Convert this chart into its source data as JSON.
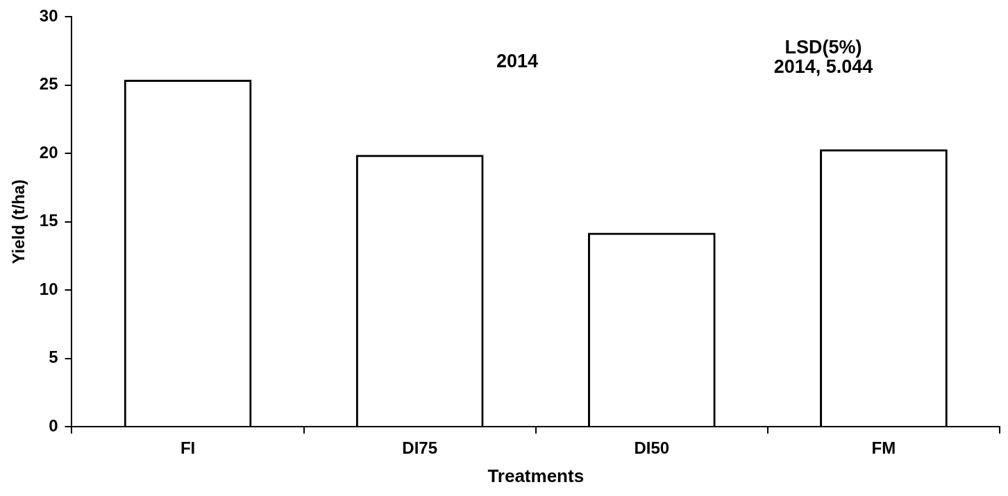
{
  "chart_data": {
    "type": "bar",
    "xlabel": "Treatments",
    "ylabel": "Yield (t/ha)",
    "annotations": [
      "2014",
      "LSD(5%)\n2014, 5.044"
    ],
    "categories": [
      "FI",
      "DI75",
      "DI50",
      "FM"
    ],
    "values": [
      25.4,
      19.9,
      14.2,
      20.3
    ],
    "color": "#000000",
    "ylim": [
      0,
      30
    ],
    "yticks": [
      0,
      5,
      10,
      15,
      20,
      25,
      30
    ],
    "grid": false,
    "legend": false
  }
}
